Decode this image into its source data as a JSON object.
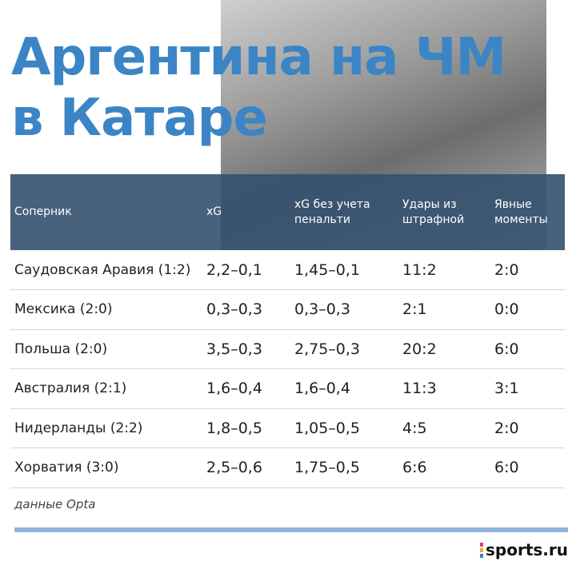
{
  "header": {
    "title_lines": [
      "Аргентина на ЧМ",
      "в Катаре"
    ]
  },
  "table": {
    "columns": [
      "Соперник",
      "xG",
      "xG без учета пенальти",
      "Удары из штрафной",
      "Явные моменты"
    ],
    "rows": [
      [
        "Саудовская Аравия (1:2)",
        "2,2–0,1",
        "1,45–0,1",
        "11:2",
        "2:0"
      ],
      [
        "Мексика (2:0)",
        "0,3–0,3",
        "0,3–0,3",
        "2:1",
        "0:0"
      ],
      [
        "Польша (2:0)",
        "3,5–0,3",
        "2,75–0,3",
        "20:2",
        "6:0"
      ],
      [
        "Австралия (2:1)",
        "1,6–0,4",
        "1,6–0,4",
        "11:3",
        "3:1"
      ],
      [
        "Нидерланды (2:2)",
        "1,8–0,5",
        "1,05–0,5",
        "4:5",
        "2:0"
      ],
      [
        "Хорватия (3:0)",
        "2,5–0,6",
        "1,75–0,5",
        "6:6",
        "6:0"
      ]
    ]
  },
  "footer": {
    "source": "данные Opta",
    "logo": "sports.ru"
  }
}
